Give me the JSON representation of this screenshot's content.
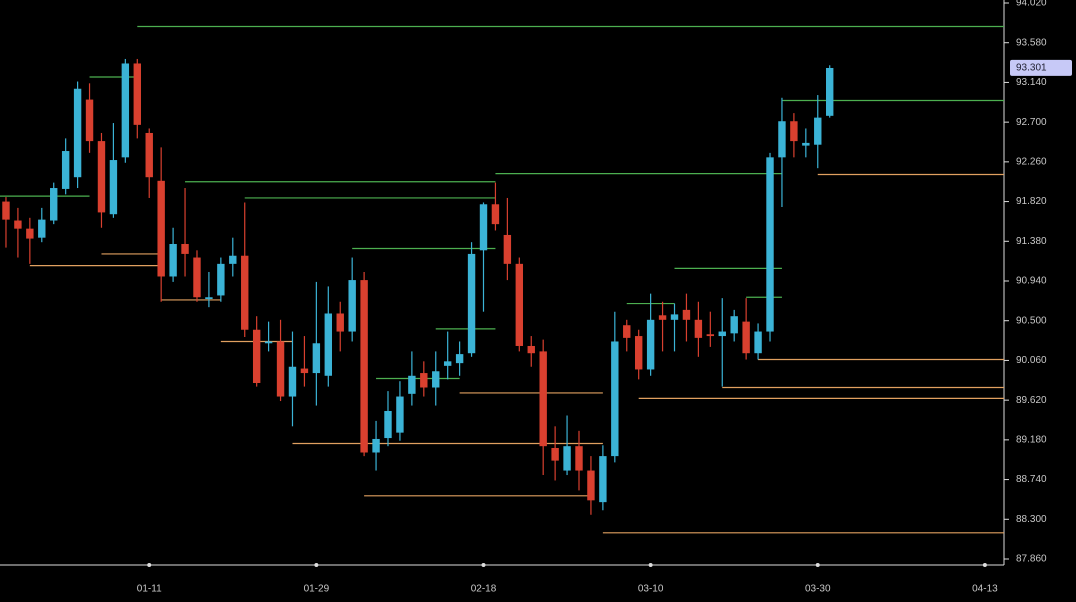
{
  "chart_data": {
    "type": "candlestick",
    "up_color": "#3bb3d6",
    "down_color": "#d9402f",
    "open": [
      91.82,
      91.61,
      91.52,
      91.42,
      91.61,
      91.96,
      92.09,
      92.95,
      92.49,
      91.68,
      92.31,
      93.35,
      92.58,
      92.05,
      90.99,
      91.35,
      91.2,
      90.74,
      90.78,
      91.13,
      91.22,
      90.4,
      90.25,
      90.27,
      89.66,
      89.97,
      89.92,
      89.89,
      90.58,
      90.38,
      90.95,
      89.04,
      89.2,
      89.26,
      89.69,
      89.92,
      89.76,
      90.0,
      90.03,
      90.14,
      91.28,
      91.79,
      91.45,
      91.13,
      90.22,
      90.16,
      89.09,
      88.84,
      89.11,
      88.84,
      88.49,
      89.0,
      90.45,
      90.33,
      89.96,
      90.56,
      90.51,
      90.62,
      90.51,
      90.35,
      90.33,
      90.36,
      90.49,
      90.14,
      90.38,
      92.31,
      92.71,
      92.44,
      92.45,
      92.77
    ],
    "high": [
      91.87,
      91.75,
      91.64,
      91.75,
      92.03,
      92.52,
      93.15,
      93.13,
      92.58,
      92.69,
      93.4,
      93.4,
      92.63,
      92.42,
      91.53,
      91.97,
      91.28,
      91.04,
      91.2,
      91.42,
      91.81,
      90.55,
      90.49,
      90.51,
      90.38,
      90.33,
      90.93,
      90.88,
      90.71,
      91.2,
      91.04,
      89.39,
      89.72,
      89.83,
      90.16,
      90.05,
      90.16,
      90.38,
      90.27,
      91.37,
      91.81,
      92.03,
      91.86,
      91.2,
      90.33,
      90.29,
      89.33,
      89.45,
      89.28,
      89.0,
      89.12,
      90.6,
      90.51,
      90.4,
      90.8,
      90.71,
      90.69,
      90.8,
      90.71,
      90.6,
      90.75,
      90.62,
      90.75,
      90.47,
      92.36,
      92.97,
      92.8,
      92.63,
      93.0,
      93.33
    ],
    "low": [
      91.31,
      91.2,
      91.13,
      91.37,
      91.57,
      91.9,
      91.97,
      92.36,
      91.53,
      91.64,
      92.25,
      92.52,
      91.86,
      90.71,
      90.93,
      90.99,
      90.71,
      90.65,
      90.71,
      90.99,
      90.32,
      89.77,
      90.16,
      89.61,
      89.33,
      89.77,
      89.56,
      89.77,
      90.16,
      90.27,
      89.0,
      88.84,
      89.11,
      89.17,
      89.56,
      89.66,
      89.56,
      89.85,
      89.89,
      90.1,
      90.6,
      91.5,
      90.95,
      90.16,
      89.99,
      88.79,
      88.73,
      88.79,
      88.62,
      88.35,
      88.4,
      88.93,
      90.16,
      89.85,
      89.89,
      90.16,
      90.16,
      90.27,
      90.1,
      90.21,
      89.77,
      90.27,
      90.07,
      90.07,
      90.27,
      91.76,
      92.31,
      92.31,
      92.19,
      92.75
    ],
    "close": [
      91.62,
      91.52,
      91.41,
      91.62,
      91.97,
      92.38,
      93.07,
      92.49,
      91.7,
      92.28,
      93.35,
      92.67,
      92.09,
      90.99,
      91.35,
      91.24,
      90.76,
      90.76,
      91.13,
      91.22,
      90.4,
      89.81,
      90.27,
      89.66,
      89.99,
      89.92,
      90.25,
      90.58,
      90.38,
      90.95,
      89.04,
      89.19,
      89.5,
      89.66,
      89.89,
      89.76,
      89.94,
      90.05,
      90.13,
      91.24,
      91.79,
      91.57,
      91.13,
      90.22,
      90.14,
      89.11,
      88.95,
      89.11,
      88.84,
      88.51,
      89.0,
      90.27,
      90.31,
      89.96,
      90.51,
      90.51,
      90.57,
      90.51,
      90.31,
      90.33,
      90.38,
      90.55,
      90.14,
      90.38,
      92.31,
      92.71,
      92.49,
      92.47,
      92.75,
      93.3
    ],
    "resistance_color": "#4caf50",
    "support_color": "#e0a060",
    "resistance": [
      {
        "value": 93.76,
        "start": 11,
        "end": 83.6
      },
      {
        "value": 93.2,
        "start": 7,
        "end": 11
      },
      {
        "value": 92.94,
        "start": 65,
        "end": 83.6
      },
      {
        "value": 92.13,
        "start": 41,
        "end": 65
      },
      {
        "value": 92.04,
        "start": 15,
        "end": 41
      },
      {
        "value": 91.88,
        "start": -0.5,
        "end": 7
      },
      {
        "value": 91.86,
        "start": 20,
        "end": 41
      },
      {
        "value": 91.3,
        "start": 29,
        "end": 41
      },
      {
        "value": 91.08,
        "start": 56,
        "end": 65
      },
      {
        "value": 90.76,
        "start": 62,
        "end": 65
      },
      {
        "value": 90.69,
        "start": 52,
        "end": 56
      },
      {
        "value": 90.41,
        "start": 36,
        "end": 41
      },
      {
        "value": 89.86,
        "start": 31,
        "end": 38
      }
    ],
    "support": [
      {
        "value": 92.12,
        "start": 68,
        "end": 83.6
      },
      {
        "value": 91.24,
        "start": 8,
        "end": 13
      },
      {
        "value": 91.11,
        "start": 2,
        "end": 13
      },
      {
        "value": 90.73,
        "start": 13,
        "end": 18
      },
      {
        "value": 90.27,
        "start": 18,
        "end": 24
      },
      {
        "value": 90.07,
        "start": 63,
        "end": 83.6
      },
      {
        "value": 89.76,
        "start": 60,
        "end": 83.6
      },
      {
        "value": 89.7,
        "start": 38,
        "end": 50
      },
      {
        "value": 89.64,
        "start": 53,
        "end": 83.6
      },
      {
        "value": 89.14,
        "start": 24,
        "end": 50
      },
      {
        "value": 88.56,
        "start": 30,
        "end": 49
      },
      {
        "value": 88.15,
        "start": 50,
        "end": 83.6
      }
    ],
    "last_price": 93.301,
    "xlim": [
      -0.5,
      83.6
    ],
    "xticks": [
      {
        "value": 12,
        "label": "01-11"
      },
      {
        "value": 26,
        "label": "01-29"
      },
      {
        "value": 40,
        "label": "02-18"
      },
      {
        "value": 54,
        "label": "03-10"
      },
      {
        "value": 68,
        "label": "03-30"
      },
      {
        "value": 82,
        "label": "04-13"
      }
    ],
    "ylim": [
      87.86,
      94.02
    ],
    "yticks": [
      {
        "value": 87.86,
        "label": "87.860"
      },
      {
        "value": 88.3,
        "label": "88.300"
      },
      {
        "value": 88.74,
        "label": "88.740"
      },
      {
        "value": 89.18,
        "label": "89.180"
      },
      {
        "value": 89.62,
        "label": "89.620"
      },
      {
        "value": 90.06,
        "label": "90.060"
      },
      {
        "value": 90.5,
        "label": "90.500"
      },
      {
        "value": 90.94,
        "label": "90.940"
      },
      {
        "value": 91.38,
        "label": "91.380"
      },
      {
        "value": 91.82,
        "label": "91.820"
      },
      {
        "value": 92.26,
        "label": "92.260"
      },
      {
        "value": 92.7,
        "label": "92.700"
      },
      {
        "value": 93.14,
        "label": "93.140"
      },
      {
        "value": 93.58,
        "label": "93.580"
      },
      {
        "value": 94.02,
        "label": "94.020"
      }
    ]
  }
}
